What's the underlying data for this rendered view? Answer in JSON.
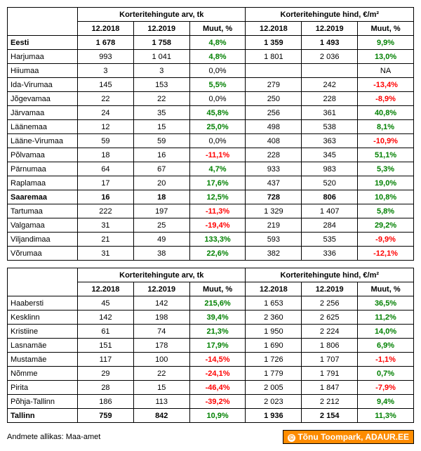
{
  "headers": {
    "group1": "Korteritehingute arv, tk",
    "group2": "Korteritehingute hind, €/m²",
    "col1": "12.2018",
    "col2": "12.2019",
    "col3": "Muut, %"
  },
  "table1": {
    "rows": [
      {
        "region": "Eesti",
        "bold": true,
        "a1": "1 678",
        "a2": "1 758",
        "ac": "4,8%",
        "acSign": 1,
        "b1": "1 359",
        "b2": "1 493",
        "bc": "9,9%",
        "bcSign": 1
      },
      {
        "region": "Harjumaa",
        "a1": "993",
        "a2": "1 041",
        "ac": "4,8%",
        "acSign": 1,
        "b1": "1 801",
        "b2": "2 036",
        "bc": "13,0%",
        "bcSign": 1
      },
      {
        "region": "Hiiumaa",
        "a1": "3",
        "a2": "3",
        "ac": "0,0%",
        "acSign": 0,
        "b1": "",
        "b2": "",
        "bc": "NA",
        "bcSign": 0
      },
      {
        "region": "Ida-Virumaa",
        "a1": "145",
        "a2": "153",
        "ac": "5,5%",
        "acSign": 1,
        "b1": "279",
        "b2": "242",
        "bc": "-13,4%",
        "bcSign": -1
      },
      {
        "region": "Jõgevamaa",
        "a1": "22",
        "a2": "22",
        "ac": "0,0%",
        "acSign": 0,
        "b1": "250",
        "b2": "228",
        "bc": "-8,9%",
        "bcSign": -1
      },
      {
        "region": "Järvamaa",
        "a1": "24",
        "a2": "35",
        "ac": "45,8%",
        "acSign": 1,
        "b1": "256",
        "b2": "361",
        "bc": "40,8%",
        "bcSign": 1
      },
      {
        "region": "Läänemaa",
        "a1": "12",
        "a2": "15",
        "ac": "25,0%",
        "acSign": 1,
        "b1": "498",
        "b2": "538",
        "bc": "8,1%",
        "bcSign": 1
      },
      {
        "region": "Lääne-Virumaa",
        "a1": "59",
        "a2": "59",
        "ac": "0,0%",
        "acSign": 0,
        "b1": "408",
        "b2": "363",
        "bc": "-10,9%",
        "bcSign": -1
      },
      {
        "region": "Põlvamaa",
        "a1": "18",
        "a2": "16",
        "ac": "-11,1%",
        "acSign": -1,
        "b1": "228",
        "b2": "345",
        "bc": "51,1%",
        "bcSign": 1
      },
      {
        "region": "Pärnumaa",
        "a1": "64",
        "a2": "67",
        "ac": "4,7%",
        "acSign": 1,
        "b1": "933",
        "b2": "983",
        "bc": "5,3%",
        "bcSign": 1
      },
      {
        "region": "Raplamaa",
        "a1": "17",
        "a2": "20",
        "ac": "17,6%",
        "acSign": 1,
        "b1": "437",
        "b2": "520",
        "bc": "19,0%",
        "bcSign": 1
      },
      {
        "region": "Saaremaa",
        "bold": true,
        "a1": "16",
        "a2": "18",
        "ac": "12,5%",
        "acSign": 1,
        "b1": "728",
        "b2": "806",
        "bc": "10,8%",
        "bcSign": 1
      },
      {
        "region": "Tartumaa",
        "a1": "222",
        "a2": "197",
        "ac": "-11,3%",
        "acSign": -1,
        "b1": "1 329",
        "b2": "1 407",
        "bc": "5,8%",
        "bcSign": 1
      },
      {
        "region": "Valgamaa",
        "a1": "31",
        "a2": "25",
        "ac": "-19,4%",
        "acSign": -1,
        "b1": "219",
        "b2": "284",
        "bc": "29,2%",
        "bcSign": 1
      },
      {
        "region": "Viljandimaa",
        "a1": "21",
        "a2": "49",
        "ac": "133,3%",
        "acSign": 1,
        "b1": "593",
        "b2": "535",
        "bc": "-9,9%",
        "bcSign": -1
      },
      {
        "region": "Võrumaa",
        "a1": "31",
        "a2": "38",
        "ac": "22,6%",
        "acSign": 1,
        "b1": "382",
        "b2": "336",
        "bc": "-12,1%",
        "bcSign": -1
      }
    ]
  },
  "table2": {
    "rows": [
      {
        "region": "Haabersti",
        "a1": "45",
        "a2": "142",
        "ac": "215,6%",
        "acSign": 1,
        "b1": "1 653",
        "b2": "2 256",
        "bc": "36,5%",
        "bcSign": 1
      },
      {
        "region": "Kesklinn",
        "a1": "142",
        "a2": "198",
        "ac": "39,4%",
        "acSign": 1,
        "b1": "2 360",
        "b2": "2 625",
        "bc": "11,2%",
        "bcSign": 1
      },
      {
        "region": "Kristiine",
        "a1": "61",
        "a2": "74",
        "ac": "21,3%",
        "acSign": 1,
        "b1": "1 950",
        "b2": "2 224",
        "bc": "14,0%",
        "bcSign": 1
      },
      {
        "region": "Lasnamäe",
        "a1": "151",
        "a2": "178",
        "ac": "17,9%",
        "acSign": 1,
        "b1": "1 690",
        "b2": "1 806",
        "bc": "6,9%",
        "bcSign": 1
      },
      {
        "region": "Mustamäe",
        "a1": "117",
        "a2": "100",
        "ac": "-14,5%",
        "acSign": -1,
        "b1": "1 726",
        "b2": "1 707",
        "bc": "-1,1%",
        "bcSign": -1
      },
      {
        "region": "Nõmme",
        "a1": "29",
        "a2": "22",
        "ac": "-24,1%",
        "acSign": -1,
        "b1": "1 779",
        "b2": "1 791",
        "bc": "0,7%",
        "bcSign": 1
      },
      {
        "region": "Pirita",
        "a1": "28",
        "a2": "15",
        "ac": "-46,4%",
        "acSign": -1,
        "b1": "2 005",
        "b2": "1 847",
        "bc": "-7,9%",
        "bcSign": -1
      },
      {
        "region": "Põhja-Tallinn",
        "a1": "186",
        "a2": "113",
        "ac": "-39,2%",
        "acSign": -1,
        "b1": "2 023",
        "b2": "2 212",
        "bc": "9,4%",
        "bcSign": 1
      },
      {
        "region": "Tallinn",
        "bold": true,
        "a1": "759",
        "a2": "842",
        "ac": "10,9%",
        "acSign": 1,
        "b1": "1 936",
        "b2": "2 154",
        "bc": "11,3%",
        "bcSign": 1
      }
    ]
  },
  "footer": {
    "source": "Andmete allikas: Maa-amet",
    "attribution": "Tõnu Toompark, ADAUR.EE"
  }
}
